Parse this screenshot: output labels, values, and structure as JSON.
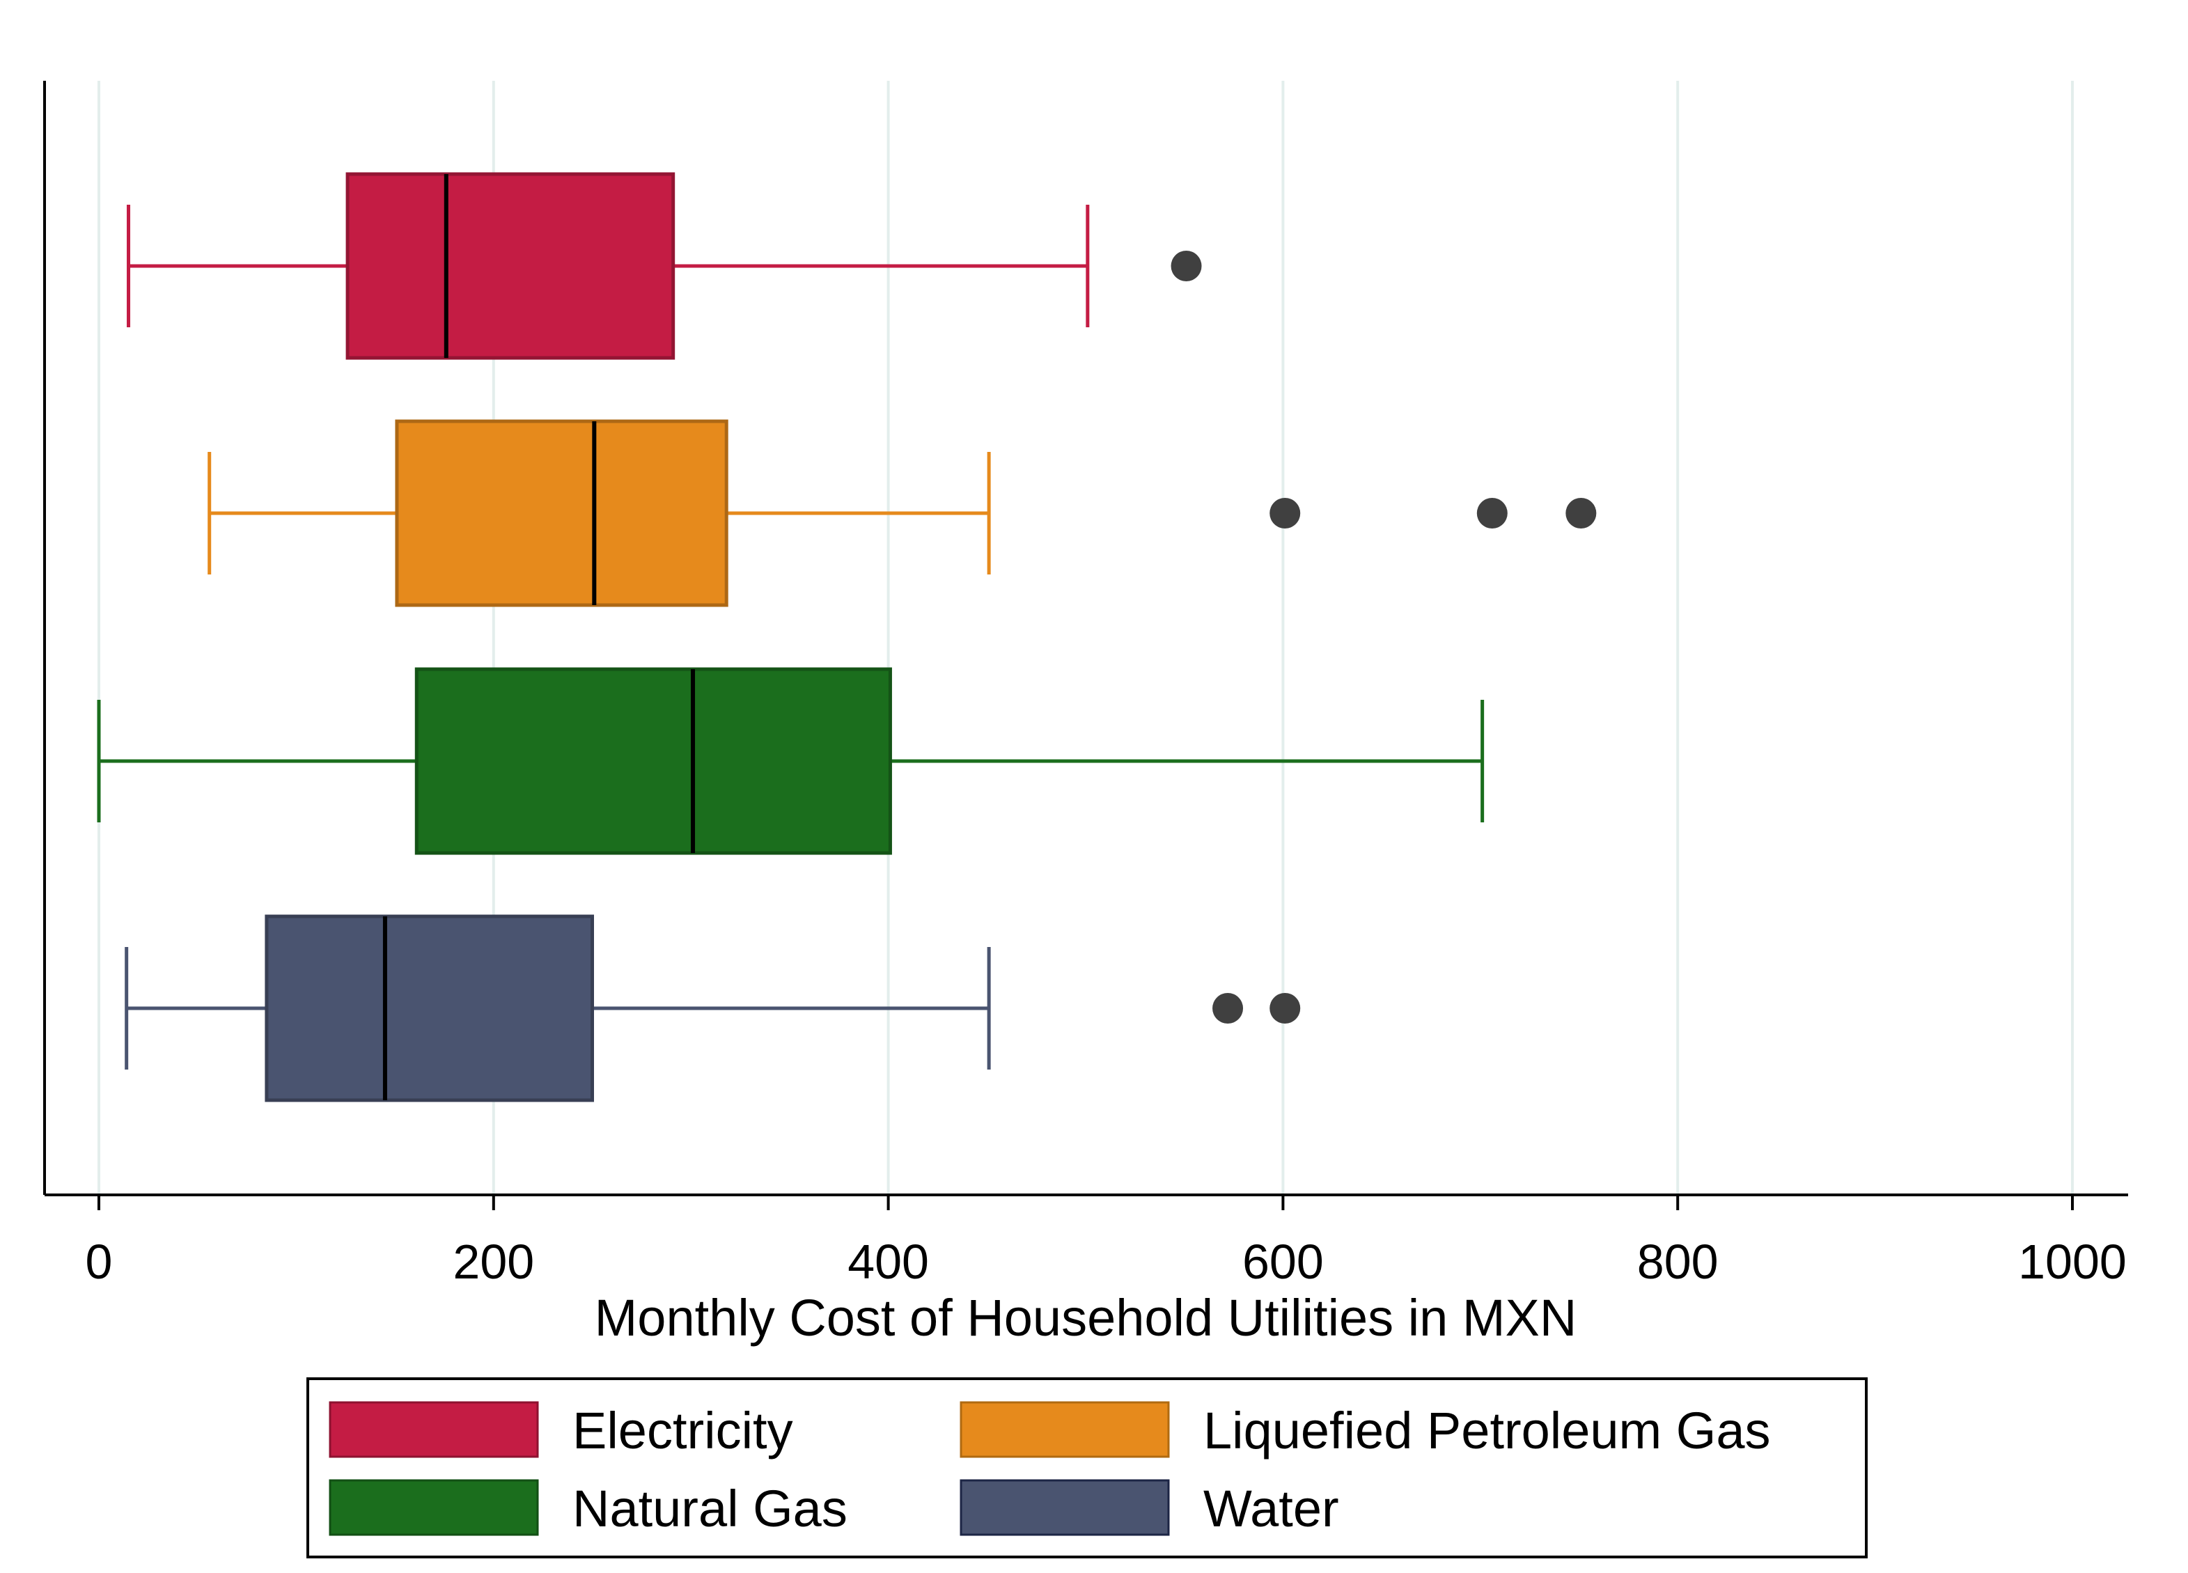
{
  "chart_data": {
    "type": "boxplot",
    "orientation": "horizontal",
    "xlabel": "Monthly Cost of Household Utilities in MXN",
    "xlim": [
      0,
      1000
    ],
    "x_ticks": [
      0,
      200,
      400,
      600,
      800,
      1000
    ],
    "x_tick_labels": [
      "0",
      "200",
      "400",
      "600",
      "800",
      "1000"
    ],
    "grid": true,
    "legend_position": "bottom",
    "series": [
      {
        "name": "Electricity",
        "color": "#C41C44",
        "whisker_low": 15,
        "q1": 126,
        "median": 176,
        "q3": 291,
        "whisker_high": 501,
        "outliers": [
          551
        ]
      },
      {
        "name": "Liquefied Petroleum Gas",
        "color": "#E68A1C",
        "whisker_low": 56,
        "q1": 151,
        "median": 251,
        "q3": 318,
        "whisker_high": 451,
        "outliers": [
          601,
          706,
          751
        ]
      },
      {
        "name": "Natural Gas",
        "color": "#1B6E1D",
        "whisker_low": 0,
        "q1": 161,
        "median": 301,
        "q3": 401,
        "whisker_high": 701,
        "outliers": []
      },
      {
        "name": "Water",
        "color": "#4A5470",
        "whisker_low": 14,
        "q1": 85,
        "median": 145,
        "q3": 250,
        "whisker_high": 451,
        "outliers": [
          572,
          601
        ]
      }
    ],
    "outlier_color": "#404040"
  }
}
